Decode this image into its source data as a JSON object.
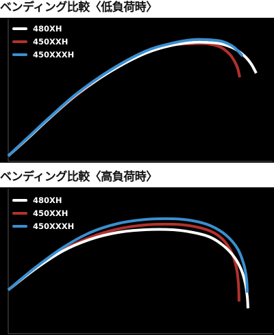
{
  "colors": {
    "480XH": "#ffffff",
    "450XXH": "#b3312d",
    "450XXXH": "#3a8fd0",
    "background": "#000000",
    "axis": "#555555"
  },
  "chart_data": [
    {
      "type": "line",
      "title": "ベンディング比較〈低負荷時〉",
      "xlabel": "",
      "ylabel": "",
      "grid": false,
      "legend": "top-left",
      "legend_entries": [
        "480XH",
        "450XXH",
        "450XXXH"
      ],
      "series": [
        {
          "name": "480XH",
          "color": "#ffffff",
          "x": [
            0,
            30,
            60,
            100,
            150,
            200,
            240,
            270,
            290,
            310,
            330,
            345,
            355,
            362
          ],
          "y": [
            0,
            27,
            55,
            90,
            124,
            150,
            162,
            166,
            166,
            164,
            157,
            146,
            134,
            121
          ]
        },
        {
          "name": "450XXH",
          "color": "#b3312d",
          "x": [
            0,
            30,
            60,
            100,
            150,
            200,
            240,
            270,
            290,
            310,
            323,
            330,
            335,
            338
          ],
          "y": [
            0,
            27,
            55,
            89,
            124,
            150,
            162,
            164,
            164,
            159,
            149,
            139,
            128,
            115
          ]
        },
        {
          "name": "450XXXH",
          "color": "#3a8fd0",
          "x": [
            0,
            30,
            60,
            100,
            150,
            200,
            240,
            270,
            290,
            310,
            325,
            335,
            342
          ],
          "y": [
            0,
            28,
            56,
            91,
            126,
            153,
            165,
            170,
            170,
            168,
            162,
            154,
            146
          ]
        }
      ]
    },
    {
      "type": "line",
      "title": "ベンディング比較〈高負荷時〉",
      "xlabel": "",
      "ylabel": "",
      "grid": false,
      "legend": "top-left",
      "legend_entries": [
        "480XH",
        "450XXH",
        "450XXXH"
      ],
      "series": [
        {
          "name": "480XH",
          "color": "#ffffff",
          "x": [
            0,
            40,
            80,
            120,
            160,
            200,
            240,
            270,
            295,
            315,
            330,
            340,
            346,
            349,
            350
          ],
          "y": [
            0,
            31,
            57,
            74,
            84,
            88,
            88,
            84,
            77,
            64,
            48,
            30,
            10,
            -10,
            -27
          ]
        },
        {
          "name": "450XXH",
          "color": "#b3312d",
          "x": [
            0,
            40,
            80,
            120,
            160,
            200,
            240,
            270,
            295,
            312,
            325,
            333,
            336,
            337
          ],
          "y": [
            0,
            31,
            58,
            77,
            89,
            95,
            96,
            93,
            86,
            75,
            57,
            33,
            10,
            -17
          ]
        },
        {
          "name": "450XXXH",
          "color": "#3a8fd0",
          "x": [
            0,
            40,
            80,
            120,
            160,
            200,
            240,
            270,
            295,
            318,
            335,
            344,
            348,
            349
          ],
          "y": [
            0,
            33,
            62,
            84,
            97,
            103,
            104,
            101,
            94,
            80,
            60,
            37,
            15,
            -4
          ]
        }
      ]
    }
  ]
}
